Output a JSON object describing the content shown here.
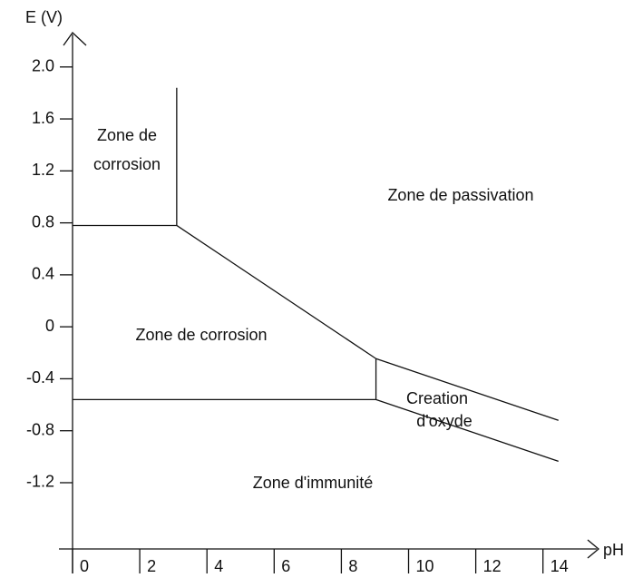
{
  "chart_data": {
    "type": "line",
    "ylabel": "E (V)",
    "xlabel": "pH",
    "xlim": [
      0,
      15.6
    ],
    "ylim": [
      -1.71,
      2.25
    ],
    "xticks": [
      0,
      2,
      4,
      6,
      8,
      10,
      12,
      14
    ],
    "yticks": [
      {
        "value": 2,
        "label": "2.0"
      },
      1.6,
      1.2,
      0.8,
      0.4,
      0,
      -0.4,
      -0.8,
      -1.2
    ],
    "lines": [
      {
        "x": [
          3.1,
          3.1
        ],
        "values": [
          1.84,
          0.78
        ]
      },
      {
        "x": [
          0,
          3.1
        ],
        "values": [
          0.78,
          0.78
        ]
      },
      {
        "x": [
          3.1,
          9.03
        ],
        "values": [
          0.78,
          -0.245
        ]
      },
      {
        "x": [
          9.03,
          9.03
        ],
        "values": [
          -0.245,
          -0.56
        ]
      },
      {
        "x": [
          0,
          9.03
        ],
        "values": [
          -0.56,
          -0.56
        ]
      },
      {
        "x": [
          9.03,
          14.46
        ],
        "values": [
          -0.245,
          -0.72
        ]
      },
      {
        "x": [
          9.03,
          14.46
        ],
        "values": [
          -0.56,
          -1.035
        ]
      }
    ],
    "annotations": [
      "Zone de",
      "corrosion",
      "Zone de passivation",
      "Zone de corrosion",
      "Creation",
      "d'oxyde",
      "Zone d'immunité"
    ]
  }
}
